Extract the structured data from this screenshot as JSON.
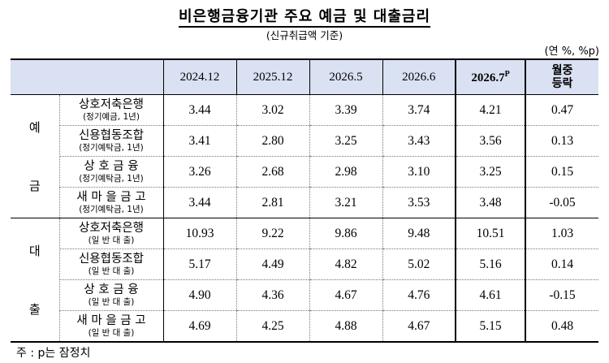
{
  "title": "비은행금융기관 주요 예금 및 대출금리",
  "subtitle": "(신규취급액 기준)",
  "unit": "(연 %, %p)",
  "columns": [
    "2024.12",
    "2025.12",
    "2026.5",
    "2026.6",
    "2026.7",
    "월중\n등락"
  ],
  "highlight_sup": "P",
  "groups": [
    {
      "label": "예\n\n금",
      "rows": [
        {
          "name": "상호저축은행",
          "sub": "(정기예금, 1년)",
          "values": [
            "3.44",
            "3.02",
            "3.39",
            "3.74",
            "4.21",
            "0.47"
          ]
        },
        {
          "name": "신용협동조합",
          "sub": "(정기예탁금, 1년)",
          "values": [
            "3.41",
            "2.80",
            "3.25",
            "3.43",
            "3.56",
            "0.13"
          ]
        },
        {
          "name": "상 호 금 융",
          "sub": "(정기예탁금, 1년)",
          "values": [
            "3.26",
            "2.68",
            "2.98",
            "3.10",
            "3.25",
            "0.15"
          ]
        },
        {
          "name": "새 마 을 금 고",
          "sub": "(정기예탁금, 1년)",
          "values": [
            "3.44",
            "2.81",
            "3.21",
            "3.53",
            "3.48",
            "-0.05"
          ]
        }
      ]
    },
    {
      "label": "대\n\n출",
      "rows": [
        {
          "name": "상호저축은행",
          "sub": "(일 반 대 출)",
          "values": [
            "10.93",
            "9.22",
            "9.86",
            "9.48",
            "10.51",
            "1.03"
          ]
        },
        {
          "name": "신용협동조합",
          "sub": "(일 반 대 출)",
          "values": [
            "5.17",
            "4.49",
            "4.82",
            "5.02",
            "5.16",
            "0.14"
          ]
        },
        {
          "name": "상 호 금 융",
          "sub": "(일 반 대 출)",
          "values": [
            "4.90",
            "4.36",
            "4.67",
            "4.76",
            "4.61",
            "-0.15"
          ]
        },
        {
          "name": "새 마 을 금 고",
          "sub": "(일 반 대 출)",
          "values": [
            "4.69",
            "4.25",
            "4.88",
            "4.67",
            "5.15",
            "0.48"
          ]
        }
      ]
    }
  ],
  "note": "주 : p는 잠정치"
}
